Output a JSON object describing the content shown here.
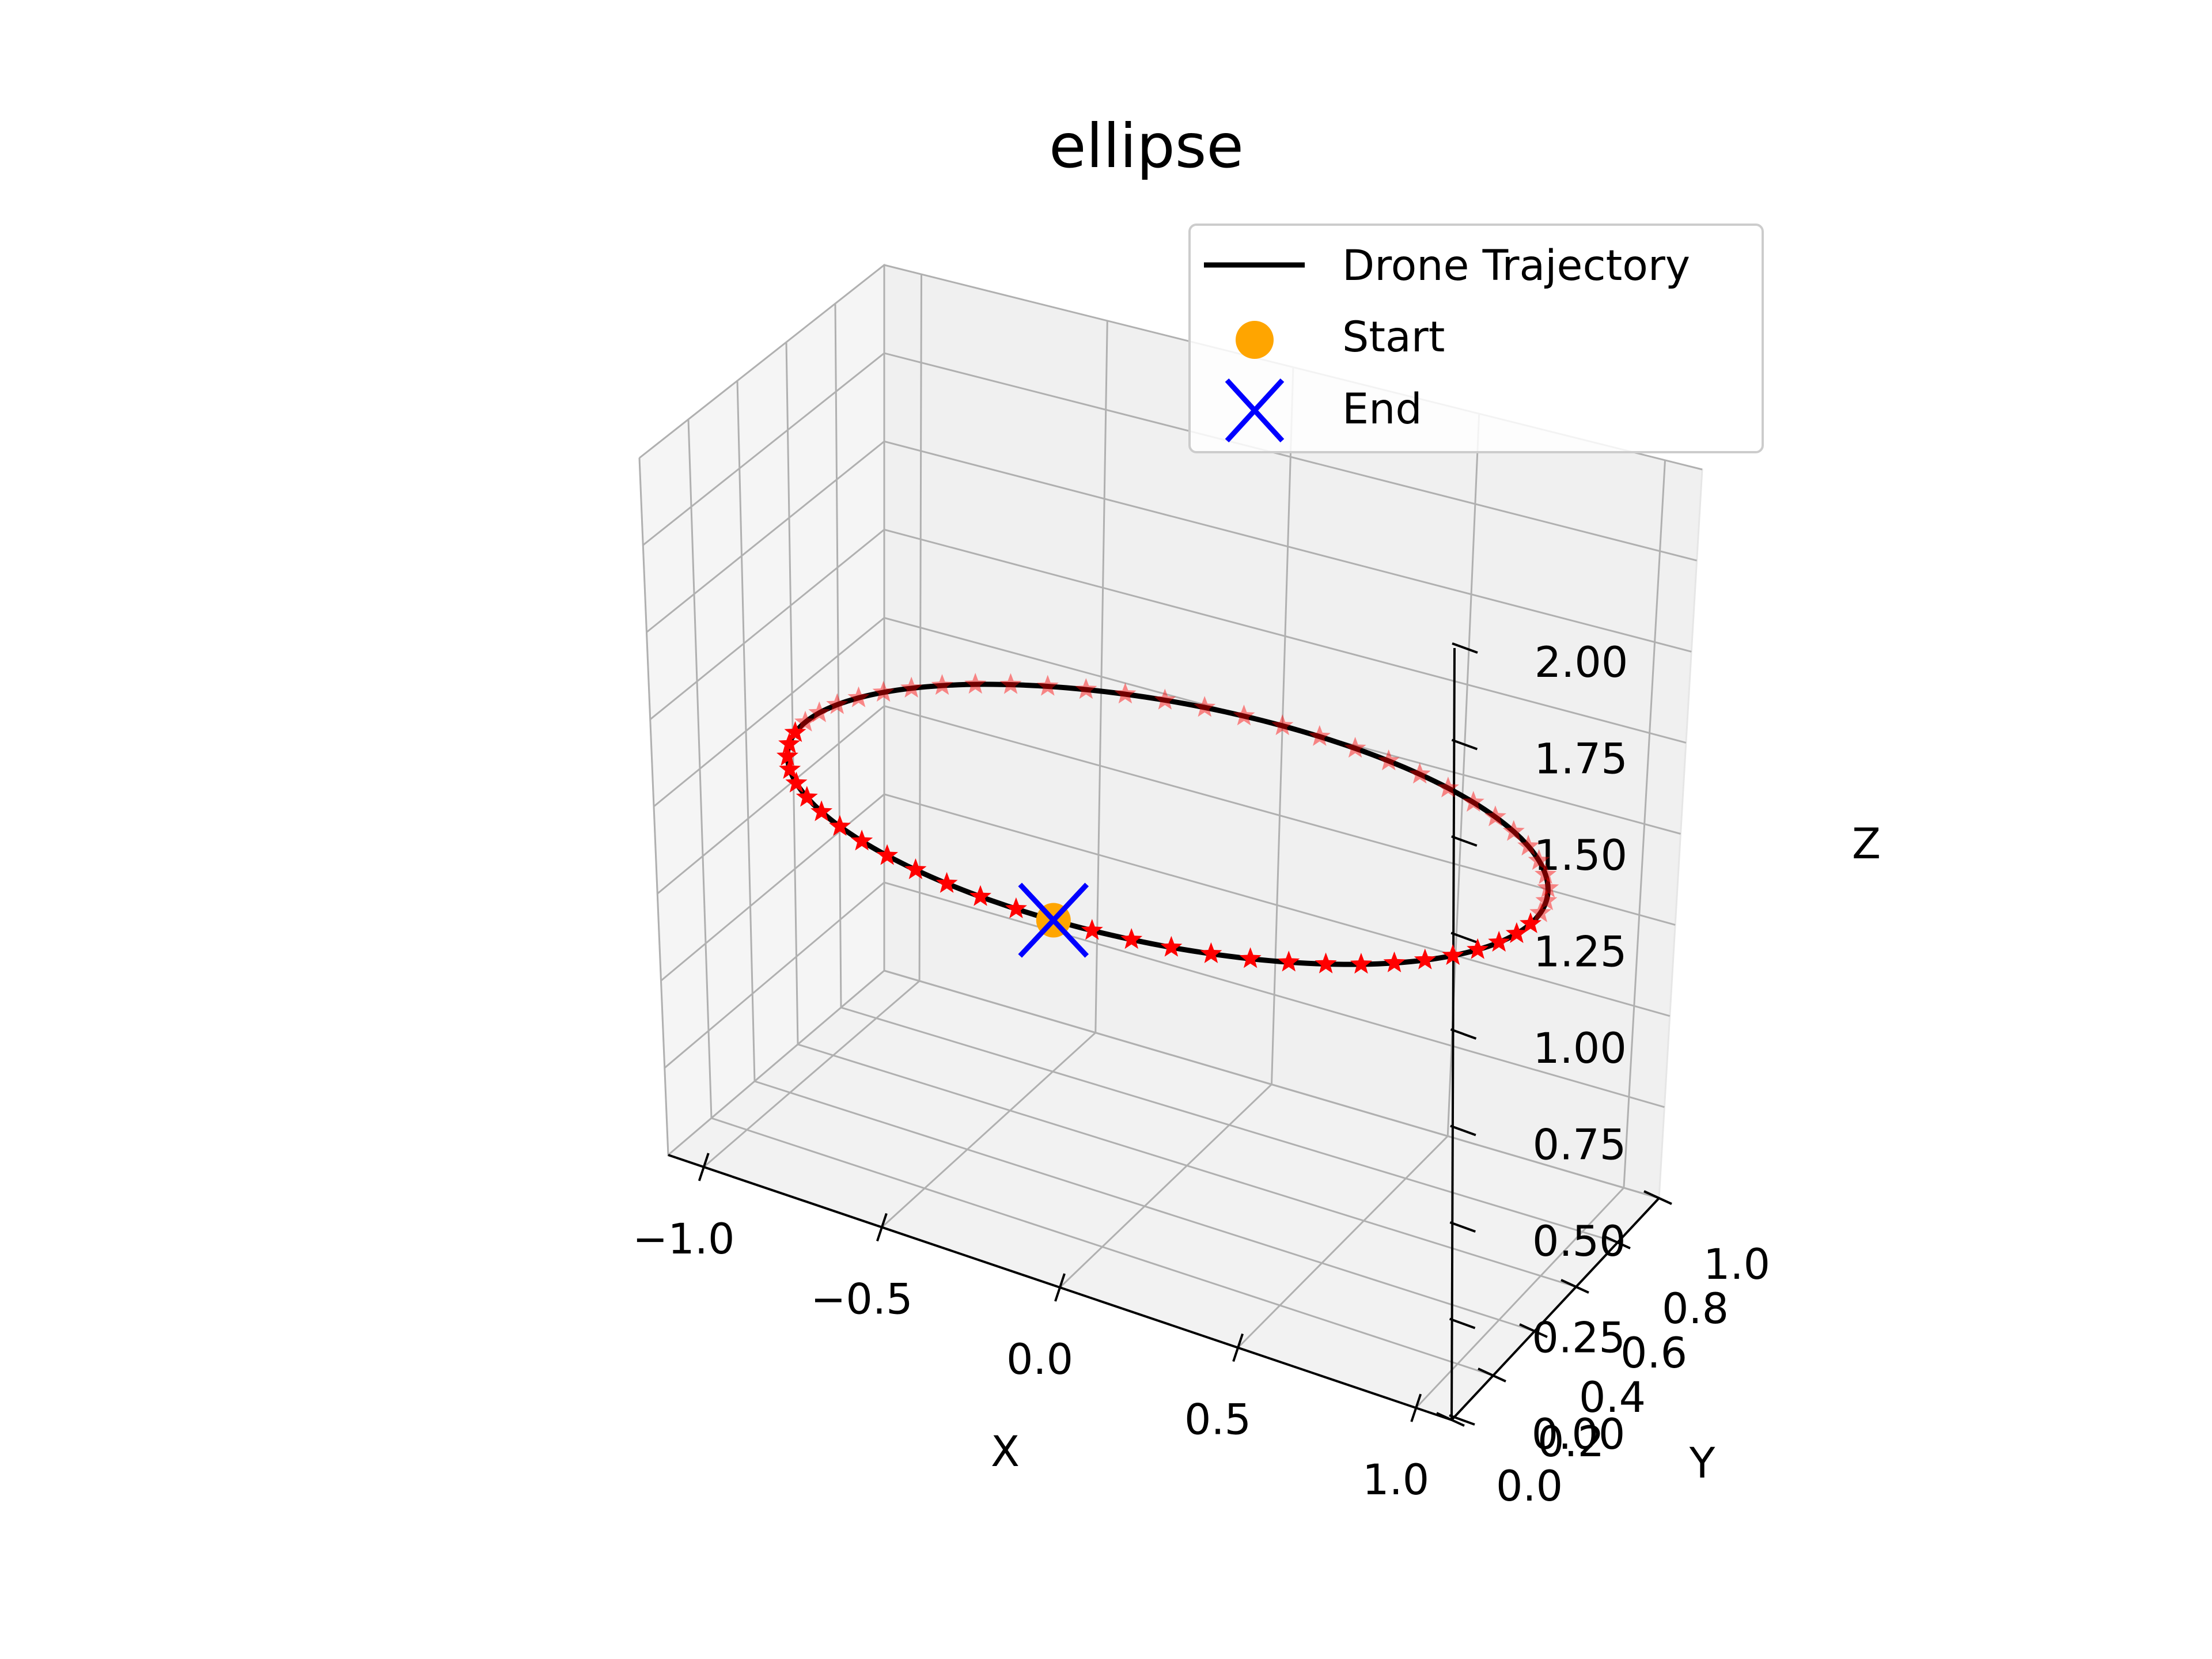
{
  "chart_data": {
    "type": "line",
    "projection": "3d",
    "title": "ellipse",
    "xlabel": "X",
    "ylabel": "Y",
    "zlabel": "Z",
    "xlim": [
      -1.1,
      1.1
    ],
    "ylim": [
      0.0,
      1.0
    ],
    "zlim": [
      0.0,
      2.0
    ],
    "x_ticks": [
      "−1.0",
      "−0.5",
      "0.0",
      "0.5",
      "1.0"
    ],
    "y_ticks": [
      "0.0",
      "0.2",
      "0.4",
      "0.6",
      "0.8",
      "1.0"
    ],
    "z_ticks": [
      "0.00",
      "0.25",
      "0.50",
      "0.75",
      "1.00",
      "1.25",
      "1.50",
      "1.75",
      "2.00"
    ],
    "grid": true,
    "legend_position": "top-right",
    "series": [
      {
        "name": "Drone Trajectory",
        "kind": "line",
        "color": "#000000",
        "shape": "ellipse",
        "center": [
          0.0,
          0.5,
          1.0
        ],
        "x_semi_axis": 1.0,
        "y_semi_axis": 0.5,
        "z": 1.0
      },
      {
        "name": "Start",
        "kind": "marker",
        "marker": "circle",
        "color": "#ffa500",
        "point": [
          0.0,
          0.0,
          1.0
        ]
      },
      {
        "name": "End",
        "kind": "marker",
        "marker": "x",
        "color": "#0000ff",
        "point": [
          0.0,
          0.0,
          1.0
        ]
      },
      {
        "kind": "waypoints",
        "marker": "star",
        "color": "#ff0000",
        "count": 60
      }
    ]
  }
}
